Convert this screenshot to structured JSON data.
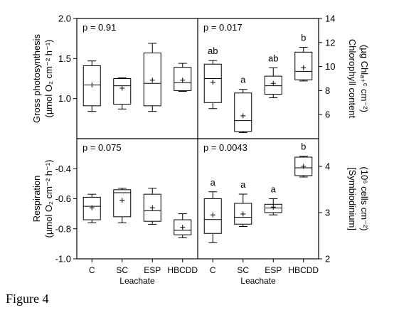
{
  "figure_caption": "Figure 4",
  "chart_data": [
    {
      "type": "box",
      "panel": "top-left",
      "title": "",
      "p_value": "p = 0.91",
      "ylabel_line1": "Gross photosynthesis",
      "ylabel_line2": "(µmol O₂ cm⁻² h⁻¹)",
      "ylim": [
        0.5,
        2.0
      ],
      "yticks": [
        2.0,
        1.5,
        1.0
      ],
      "ytick_labels": [
        "2.0",
        "1.5",
        "1.0"
      ],
      "categories": [
        "C",
        "SC",
        "ESP",
        "HBCDD"
      ],
      "boxes": [
        {
          "whisker_low": 0.84,
          "q1": 0.91,
          "median": 1.17,
          "q3": 1.41,
          "whisker_high": 1.47,
          "mean": 1.17,
          "letter": ""
        },
        {
          "whisker_low": 0.87,
          "q1": 0.93,
          "median": 1.16,
          "q3": 1.25,
          "whisker_high": 1.26,
          "mean": 1.13,
          "letter": ""
        },
        {
          "whisker_low": 0.84,
          "q1": 0.91,
          "median": 1.19,
          "q3": 1.57,
          "whisker_high": 1.69,
          "mean": 1.23,
          "letter": ""
        },
        {
          "whisker_low": 1.09,
          "q1": 1.1,
          "median": 1.2,
          "q3": 1.39,
          "whisker_high": 1.44,
          "mean": 1.23,
          "letter": ""
        }
      ]
    },
    {
      "type": "box",
      "panel": "top-right",
      "title": "",
      "p_value": "p = 0.017",
      "ylabel_line1": "Chlorophyll content",
      "ylabel_line2": "(µg Chlₐ₊ᶜ cm⁻²)",
      "ylim": [
        4,
        14
      ],
      "yticks": [
        14,
        12,
        10,
        8,
        6
      ],
      "ytick_labels": [
        "14",
        "12",
        "10",
        "8",
        "6"
      ],
      "categories": [
        "C",
        "SC",
        "ESP",
        "HBCDD"
      ],
      "boxes": [
        {
          "whisker_low": 6.5,
          "q1": 7.0,
          "median": 9.0,
          "q3": 10.2,
          "whisker_high": 10.5,
          "mean": 8.7,
          "letter": "ab"
        },
        {
          "whisker_low": 4.5,
          "q1": 4.6,
          "median": 5.5,
          "q3": 7.8,
          "whisker_high": 8.1,
          "mean": 5.9,
          "letter": "a"
        },
        {
          "whisker_low": 7.4,
          "q1": 7.7,
          "median": 8.4,
          "q3": 9.2,
          "whisker_high": 9.9,
          "mean": 8.6,
          "letter": "ab"
        },
        {
          "whisker_low": 8.8,
          "q1": 8.9,
          "median": 9.6,
          "q3": 11.2,
          "whisker_high": 11.6,
          "mean": 9.9,
          "letter": "b"
        }
      ]
    },
    {
      "type": "box",
      "panel": "bottom-left",
      "title": "",
      "p_value": "p = 0.075",
      "ylabel_line1": "Respiration",
      "ylabel_line2": "(µmol O₂ cm⁻² h⁻¹)",
      "ylim": [
        -1.0,
        -0.2
      ],
      "yticks": [
        -0.4,
        -0.6,
        -0.8,
        -1.0
      ],
      "ytick_labels": [
        "-0.4",
        "-0.6",
        "-0.8",
        "-1.0"
      ],
      "categories": [
        "C",
        "SC",
        "ESP",
        "HBCDD"
      ],
      "xlabel": "Leachate",
      "boxes": [
        {
          "whisker_low": -0.76,
          "q1": -0.74,
          "median": -0.65,
          "q3": -0.59,
          "whisker_high": -0.57,
          "mean": -0.66,
          "letter": ""
        },
        {
          "whisker_low": -0.76,
          "q1": -0.72,
          "median": -0.56,
          "q3": -0.54,
          "whisker_high": -0.53,
          "mean": -0.61,
          "letter": ""
        },
        {
          "whisker_low": -0.77,
          "q1": -0.75,
          "median": -0.68,
          "q3": -0.57,
          "whisker_high": -0.53,
          "mean": -0.66,
          "letter": ""
        },
        {
          "whisker_low": -0.86,
          "q1": -0.84,
          "median": -0.81,
          "q3": -0.74,
          "whisker_high": -0.7,
          "mean": -0.79,
          "letter": ""
        }
      ]
    },
    {
      "type": "box",
      "panel": "bottom-right",
      "title": "",
      "p_value": "p = 0.0043",
      "ylabel_line1": "[Symbiodinium]",
      "ylabel_line2": "(10⁶ cells cm⁻²)",
      "ylim": [
        2.0,
        4.6
      ],
      "yticks": [
        4,
        3,
        2
      ],
      "ytick_labels": [
        "4",
        "3",
        "2"
      ],
      "categories": [
        "C",
        "SC",
        "ESP",
        "HBCDD"
      ],
      "xlabel": "Leachate",
      "boxes": [
        {
          "whisker_low": 2.35,
          "q1": 2.55,
          "median": 2.85,
          "q3": 3.3,
          "whisker_high": 3.45,
          "mean": 2.95,
          "letter": "a"
        },
        {
          "whisker_low": 2.7,
          "q1": 2.75,
          "median": 2.9,
          "q3": 3.2,
          "whisker_high": 3.4,
          "mean": 2.97,
          "letter": "a"
        },
        {
          "whisker_low": 2.95,
          "q1": 3.0,
          "median": 3.1,
          "q3": 3.18,
          "whisker_high": 3.3,
          "mean": 3.12,
          "letter": "a"
        },
        {
          "whisker_low": 3.77,
          "q1": 3.8,
          "median": 3.97,
          "q3": 4.2,
          "whisker_high": 4.22,
          "mean": 4.0,
          "letter": "b"
        }
      ]
    }
  ]
}
